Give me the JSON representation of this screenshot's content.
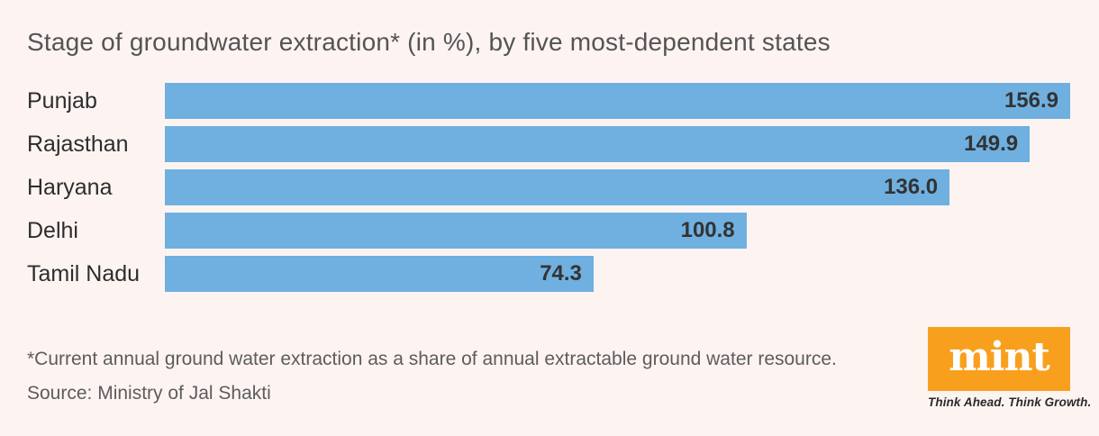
{
  "title": "Stage of groundwater extraction* (in %), by five most-dependent states",
  "chart_data": {
    "type": "bar",
    "orientation": "horizontal",
    "title": "Stage of groundwater extraction* (in %), by five most-dependent states",
    "categories": [
      "Punjab",
      "Rajasthan",
      "Haryana",
      "Delhi",
      "Tamil Nadu"
    ],
    "values": [
      156.9,
      149.9,
      136.0,
      100.8,
      74.3
    ],
    "value_labels": [
      "156.9",
      "149.9",
      "136.0",
      "100.8",
      "74.3"
    ],
    "xlabel": "",
    "ylabel": "",
    "xlim": [
      0,
      156.9
    ],
    "grid": false,
    "legend": "none",
    "value_label_position": "inside-end",
    "bar_color": "#6FB0E1"
  },
  "footer": {
    "footnote": "*Current annual ground water extraction as a share of annual extractable ground water resource.",
    "source": "Source: Ministry of Jal Shakti"
  },
  "branding": {
    "logo_text": "mint",
    "tagline": "Think Ahead. Think Growth.",
    "logo_bg_color": "#F8A01E",
    "logo_text_color": "#FFFFFF"
  },
  "colors": {
    "background": "#FDF4F2",
    "bar": "#6FB0E1",
    "title_text": "#545454",
    "category_text": "#2D2D2D",
    "value_text": "#333333",
    "footnote_text": "#5C5C5C"
  }
}
